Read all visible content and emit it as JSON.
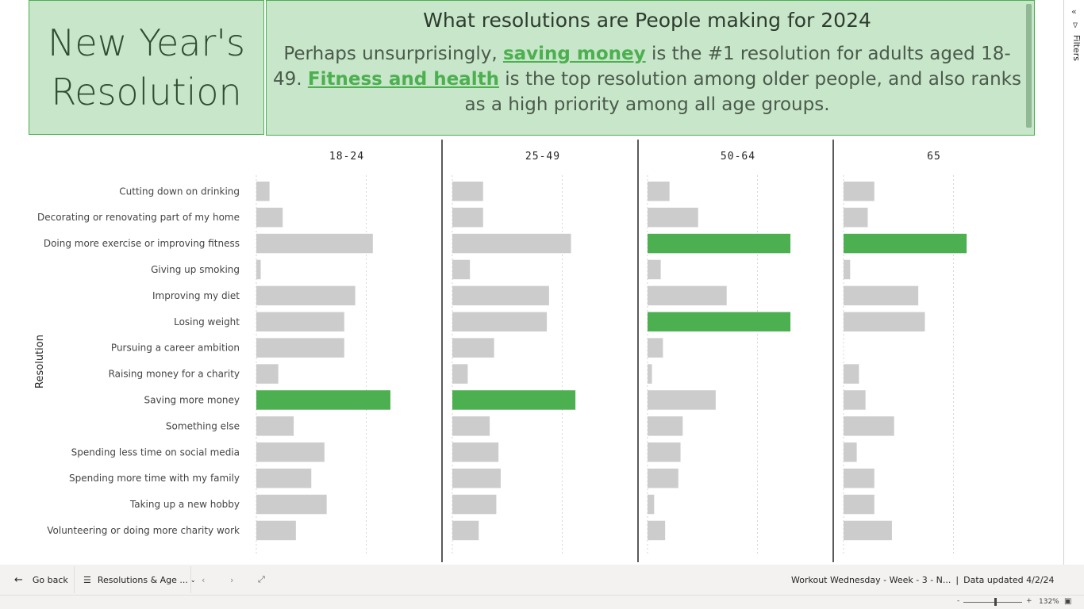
{
  "title_panel": {
    "line1": "New Year's",
    "line2": "Resolution"
  },
  "description": {
    "heading": "What resolutions are People making for 2024",
    "p1": "Perhaps unsurprisingly, ",
    "link1": "saving money",
    "p2": " is the #1 resolution for adults aged 18-49. ",
    "link2": "Fitness and health",
    "p3": " is the top resolution among older people, and also ranks as a high priority among all age groups."
  },
  "filters_pane": {
    "label": "Filters"
  },
  "colors": {
    "highlight": "#4caf50",
    "bar": "#cccccc",
    "panel": "#c8e6c9"
  },
  "chart_data": {
    "type": "bar",
    "orientation": "horizontal",
    "ylabel": "Resolution",
    "facets": [
      "18-24",
      "25-49",
      "50-64",
      "65"
    ],
    "categories": [
      "Cutting down on drinking",
      "Decorating or renovating part of my home",
      "Doing more exercise or improving fitness",
      "Giving up smoking",
      "Improving my diet",
      "Losing weight",
      "Pursuing a career ambition",
      "Raising money for a charity",
      "Saving more money",
      "Something else",
      "Spending less time on social media",
      "Spending more time with my family",
      "Taking up a new hobby",
      "Volunteering or doing more charity work"
    ],
    "series": [
      {
        "name": "18-24",
        "values": [
          6,
          12,
          53,
          2,
          45,
          40,
          40,
          10,
          61,
          17,
          31,
          25,
          32,
          18
        ],
        "highlight": [
          8
        ]
      },
      {
        "name": "25-49",
        "values": [
          14,
          14,
          54,
          8,
          44,
          43,
          19,
          7,
          56,
          17,
          21,
          22,
          20,
          12
        ],
        "highlight": [
          8
        ]
      },
      {
        "name": "50-64",
        "values": [
          10,
          23,
          65,
          6,
          36,
          65,
          7,
          2,
          31,
          16,
          15,
          14,
          3,
          8
        ],
        "highlight": [
          2,
          5
        ]
      },
      {
        "name": "65",
        "values": [
          14,
          11,
          56,
          3,
          34,
          37,
          0,
          7,
          10,
          23,
          6,
          14,
          14,
          22
        ],
        "highlight": [
          2
        ]
      }
    ],
    "xlim": [
      0,
      100
    ],
    "grid": true,
    "legend": "none"
  },
  "footer": {
    "go_back": "Go back",
    "page_name": "Resolutions & Age ...",
    "report_info": "Workout Wednesday - Week - 3 - N...",
    "data_updated": "Data updated 4/2/24",
    "zoom": "132%",
    "zoom_minus": "-",
    "zoom_plus": "+"
  }
}
